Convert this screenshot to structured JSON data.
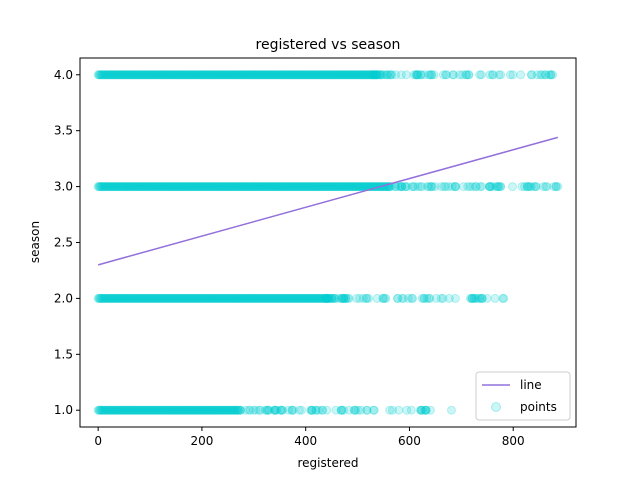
{
  "chart_data": {
    "type": "scatter",
    "title": "registered vs season",
    "xlabel": "registered",
    "ylabel": "season",
    "xlim": [
      -35,
      921
    ],
    "ylim": [
      0.85,
      4.15
    ],
    "xticks": [
      0,
      200,
      400,
      600,
      800
    ],
    "yticks": [
      1.0,
      1.5,
      2.0,
      2.5,
      3.0,
      3.5,
      4.0
    ],
    "legend_position": "lower-right",
    "grid": false,
    "series": [
      {
        "name": "line",
        "kind": "line",
        "color": "#9370db",
        "x": [
          0,
          886
        ],
        "y": [
          2.3,
          3.44
        ]
      },
      {
        "name": "points",
        "kind": "scatter",
        "color": "#00ced1",
        "bands": [
          {
            "y": 1.0,
            "dense_to": 270,
            "max_x": 681
          },
          {
            "y": 2.0,
            "dense_to": 440,
            "max_x": 782
          },
          {
            "y": 3.0,
            "dense_to": 560,
            "max_x": 886
          },
          {
            "y": 4.0,
            "dense_to": 530,
            "max_x": 876
          }
        ]
      }
    ]
  }
}
